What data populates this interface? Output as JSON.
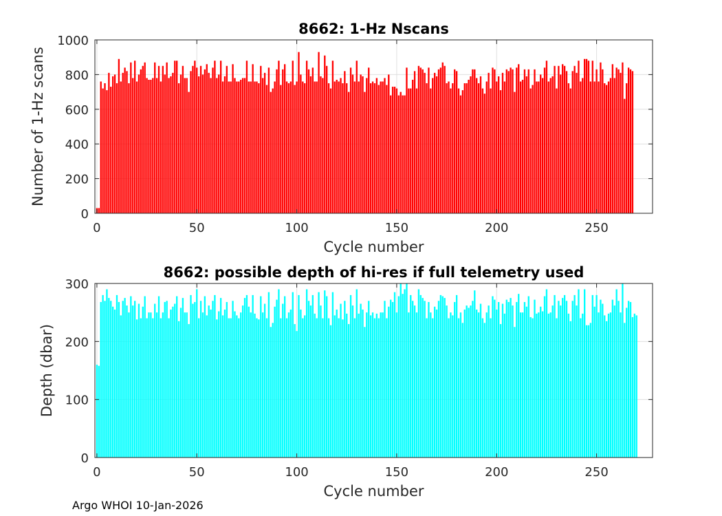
{
  "footer": "Argo WHOI 10-Jan-2026",
  "chart_data": [
    {
      "type": "bar",
      "title": "8662: 1-Hz Nscans",
      "xlabel": "Cycle number",
      "ylabel": "Number of 1-Hz scans",
      "xlim": [
        -1,
        278
      ],
      "ylim": [
        0,
        1000
      ],
      "xticks": [
        0,
        50,
        100,
        150,
        200,
        250
      ],
      "yticks": [
        0,
        200,
        400,
        600,
        800,
        1000
      ],
      "color": "#ff0000",
      "grid": true,
      "x_start": 0,
      "values": [
        30,
        30,
        760,
        720,
        750,
        710,
        810,
        730,
        790,
        800,
        750,
        890,
        760,
        810,
        840,
        820,
        750,
        870,
        780,
        880,
        760,
        800,
        830,
        850,
        870,
        780,
        770,
        770,
        780,
        870,
        780,
        850,
        760,
        850,
        800,
        870,
        780,
        790,
        810,
        880,
        880,
        750,
        800,
        850,
        780,
        780,
        700,
        820,
        850,
        880,
        840,
        790,
        850,
        800,
        830,
        860,
        810,
        780,
        840,
        880,
        780,
        800,
        880,
        760,
        790,
        850,
        760,
        760,
        860,
        780,
        760,
        760,
        770,
        780,
        780,
        880,
        760,
        760,
        860,
        760,
        760,
        750,
        850,
        780,
        810,
        740,
        840,
        700,
        720,
        760,
        830,
        880,
        740,
        830,
        860,
        760,
        750,
        760,
        880,
        740,
        760,
        930,
        800,
        760,
        750,
        880,
        830,
        790,
        840,
        760,
        760,
        930,
        790,
        780,
        910,
        850,
        750,
        720,
        880,
        760,
        770,
        760,
        780,
        750,
        820,
        750,
        700,
        840,
        800,
        760,
        880,
        760,
        800,
        790,
        700,
        780,
        840,
        750,
        760,
        750,
        780,
        740,
        760,
        760,
        780,
        740,
        800,
        680,
        730,
        730,
        720,
        680,
        700,
        680,
        680,
        840,
        720,
        720,
        770,
        820,
        720,
        850,
        840,
        830,
        810,
        750,
        840,
        720,
        780,
        810,
        790,
        830,
        840,
        870,
        850,
        750,
        760,
        720,
        750,
        830,
        820,
        720,
        680,
        710,
        750,
        750,
        770,
        790,
        830,
        830,
        780,
        750,
        790,
        720,
        690,
        760,
        810,
        720,
        840,
        830,
        760,
        790,
        710,
        810,
        760,
        830,
        820,
        840,
        830,
        700,
        840,
        860,
        760,
        770,
        830,
        790,
        830,
        720,
        740,
        830,
        760,
        760,
        800,
        780,
        840,
        880,
        760,
        780,
        790,
        850,
        720,
        850,
        800,
        860,
        850,
        820,
        750,
        720,
        820,
        850,
        810,
        880,
        760,
        780,
        890,
        890,
        880,
        760,
        880,
        760,
        830,
        760,
        870,
        830,
        750,
        740,
        760,
        780,
        860,
        780,
        840,
        830,
        810,
        870,
        660,
        750,
        840,
        830,
        820
      ]
    },
    {
      "type": "bar",
      "title": "8662: possible depth of hi-res if full telemetry used",
      "xlabel": "Cycle number",
      "ylabel": "Depth (dbar)",
      "xlim": [
        -1,
        278
      ],
      "ylim": [
        0,
        300
      ],
      "xticks": [
        0,
        50,
        100,
        150,
        200,
        250
      ],
      "yticks": [
        0,
        100,
        200,
        300
      ],
      "color": "#00ffff",
      "grid": true,
      "x_start": 0,
      "values": [
        160,
        158,
        268,
        280,
        270,
        290,
        275,
        270,
        260,
        255,
        280,
        268,
        245,
        270,
        275,
        262,
        250,
        278,
        262,
        270,
        238,
        265,
        240,
        260,
        278,
        240,
        250,
        250,
        240,
        265,
        250,
        278,
        240,
        250,
        268,
        270,
        240,
        255,
        260,
        265,
        278,
        235,
        258,
        275,
        250,
        250,
        230,
        280,
        265,
        268,
        290,
        240,
        270,
        250,
        278,
        245,
        262,
        255,
        270,
        280,
        238,
        252,
        275,
        245,
        255,
        268,
        240,
        240,
        270,
        252,
        245,
        240,
        250,
        262,
        275,
        280,
        260,
        250,
        280,
        248,
        240,
        238,
        278,
        250,
        265,
        240,
        285,
        225,
        232,
        260,
        272,
        290,
        240,
        265,
        278,
        240,
        250,
        255,
        285,
        230,
        218,
        280,
        255,
        240,
        245,
        290,
        270,
        262,
        280,
        248,
        240,
        285,
        262,
        240,
        288,
        278,
        240,
        228,
        285,
        245,
        255,
        240,
        265,
        238,
        270,
        248,
        230,
        280,
        262,
        240,
        290,
        248,
        265,
        255,
        225,
        250,
        270,
        245,
        250,
        240,
        248,
        240,
        250,
        250,
        270,
        240,
        260,
        272,
        268,
        285,
        250,
        278,
        300,
        282,
        290,
        300,
        250,
        280,
        270,
        262,
        250,
        290,
        280,
        275,
        270,
        240,
        268,
        250,
        240,
        260,
        255,
        270,
        280,
        278,
        275,
        262,
        240,
        250,
        245,
        268,
        280,
        240,
        250,
        232,
        255,
        262,
        258,
        262,
        270,
        288,
        255,
        250,
        265,
        240,
        232,
        250,
        262,
        240,
        278,
        272,
        255,
        268,
        230,
        265,
        248,
        272,
        268,
        275,
        262,
        225,
        268,
        282,
        250,
        250,
        268,
        260,
        278,
        242,
        240,
        272,
        248,
        250,
        260,
        252,
        278,
        290,
        248,
        250,
        262,
        280,
        240,
        270,
        262,
        275,
        280,
        270,
        248,
        235,
        270,
        280,
        262,
        290,
        240,
        248,
        290,
        228,
        228,
        232,
        280,
        260,
        280,
        250,
        272,
        265,
        245,
        235,
        248,
        250,
        272,
        262,
        290,
        270,
        250,
        305,
        232,
        258,
        270,
        268,
        242,
        248,
        245
      ]
    }
  ]
}
